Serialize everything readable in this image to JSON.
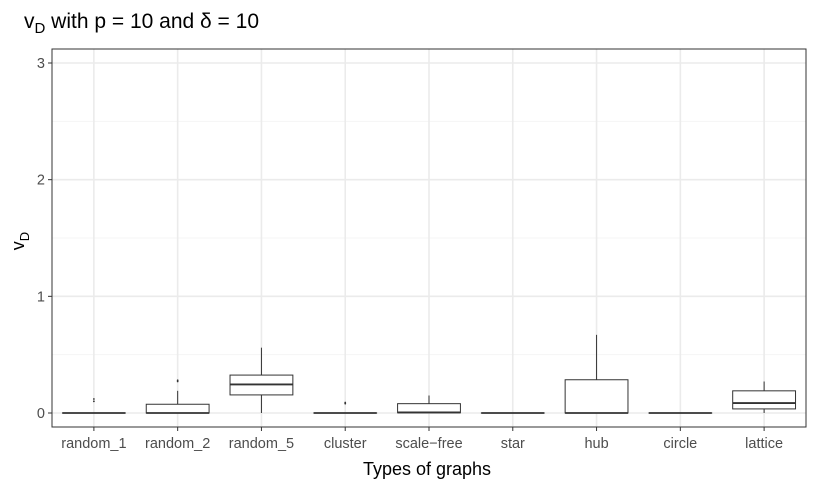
{
  "chart_data": {
    "type": "boxplot",
    "title": {
      "main": "v",
      "sub": "D",
      "rest": " with p = 10 and δ = 10"
    },
    "xlabel": "Types of graphs",
    "ylabel": {
      "main": "v",
      "sub": "D"
    },
    "ylim": [
      -0.12,
      3.12
    ],
    "yticks": [
      0,
      1,
      2,
      3
    ],
    "ytick_labels": [
      "0",
      "1",
      "2",
      "3"
    ],
    "grid": true,
    "categories": [
      "random_1",
      "random_2",
      "random_5",
      "cluster",
      "scale−free",
      "star",
      "hub",
      "circle",
      "lattice"
    ],
    "boxes": [
      {
        "min": 0,
        "q1": 0,
        "median": 0,
        "q3": 0,
        "max": 0,
        "outliers": [
          0.1,
          0.12
        ]
      },
      {
        "min": 0,
        "q1": 0,
        "median": 0,
        "q3": 0.075,
        "max": 0.19,
        "outliers": [
          0.27,
          0.28
        ]
      },
      {
        "min": 0,
        "q1": 0.155,
        "median": 0.245,
        "q3": 0.325,
        "max": 0.56,
        "outliers": []
      },
      {
        "min": 0,
        "q1": 0,
        "median": 0,
        "q3": 0,
        "max": 0,
        "outliers": [
          0.08,
          0.09
        ]
      },
      {
        "min": 0,
        "q1": 0.002,
        "median": 0.005,
        "q3": 0.08,
        "max": 0.15,
        "outliers": []
      },
      {
        "min": 0,
        "q1": 0,
        "median": 0,
        "q3": 0,
        "max": 0,
        "outliers": []
      },
      {
        "min": 0,
        "q1": 0,
        "median": 0,
        "q3": 0.285,
        "max": 0.67,
        "outliers": []
      },
      {
        "min": 0,
        "q1": 0,
        "median": 0,
        "q3": 0,
        "max": 0,
        "outliers": []
      },
      {
        "min": 0,
        "q1": 0.035,
        "median": 0.085,
        "q3": 0.19,
        "max": 0.27,
        "outliers": []
      }
    ],
    "colors": {
      "grid_major": "#ebebeb",
      "grid_minor": "#f4f4f4",
      "panel_border": "#333333",
      "box": "#333333",
      "tick_text": "#4d4d4d"
    }
  }
}
